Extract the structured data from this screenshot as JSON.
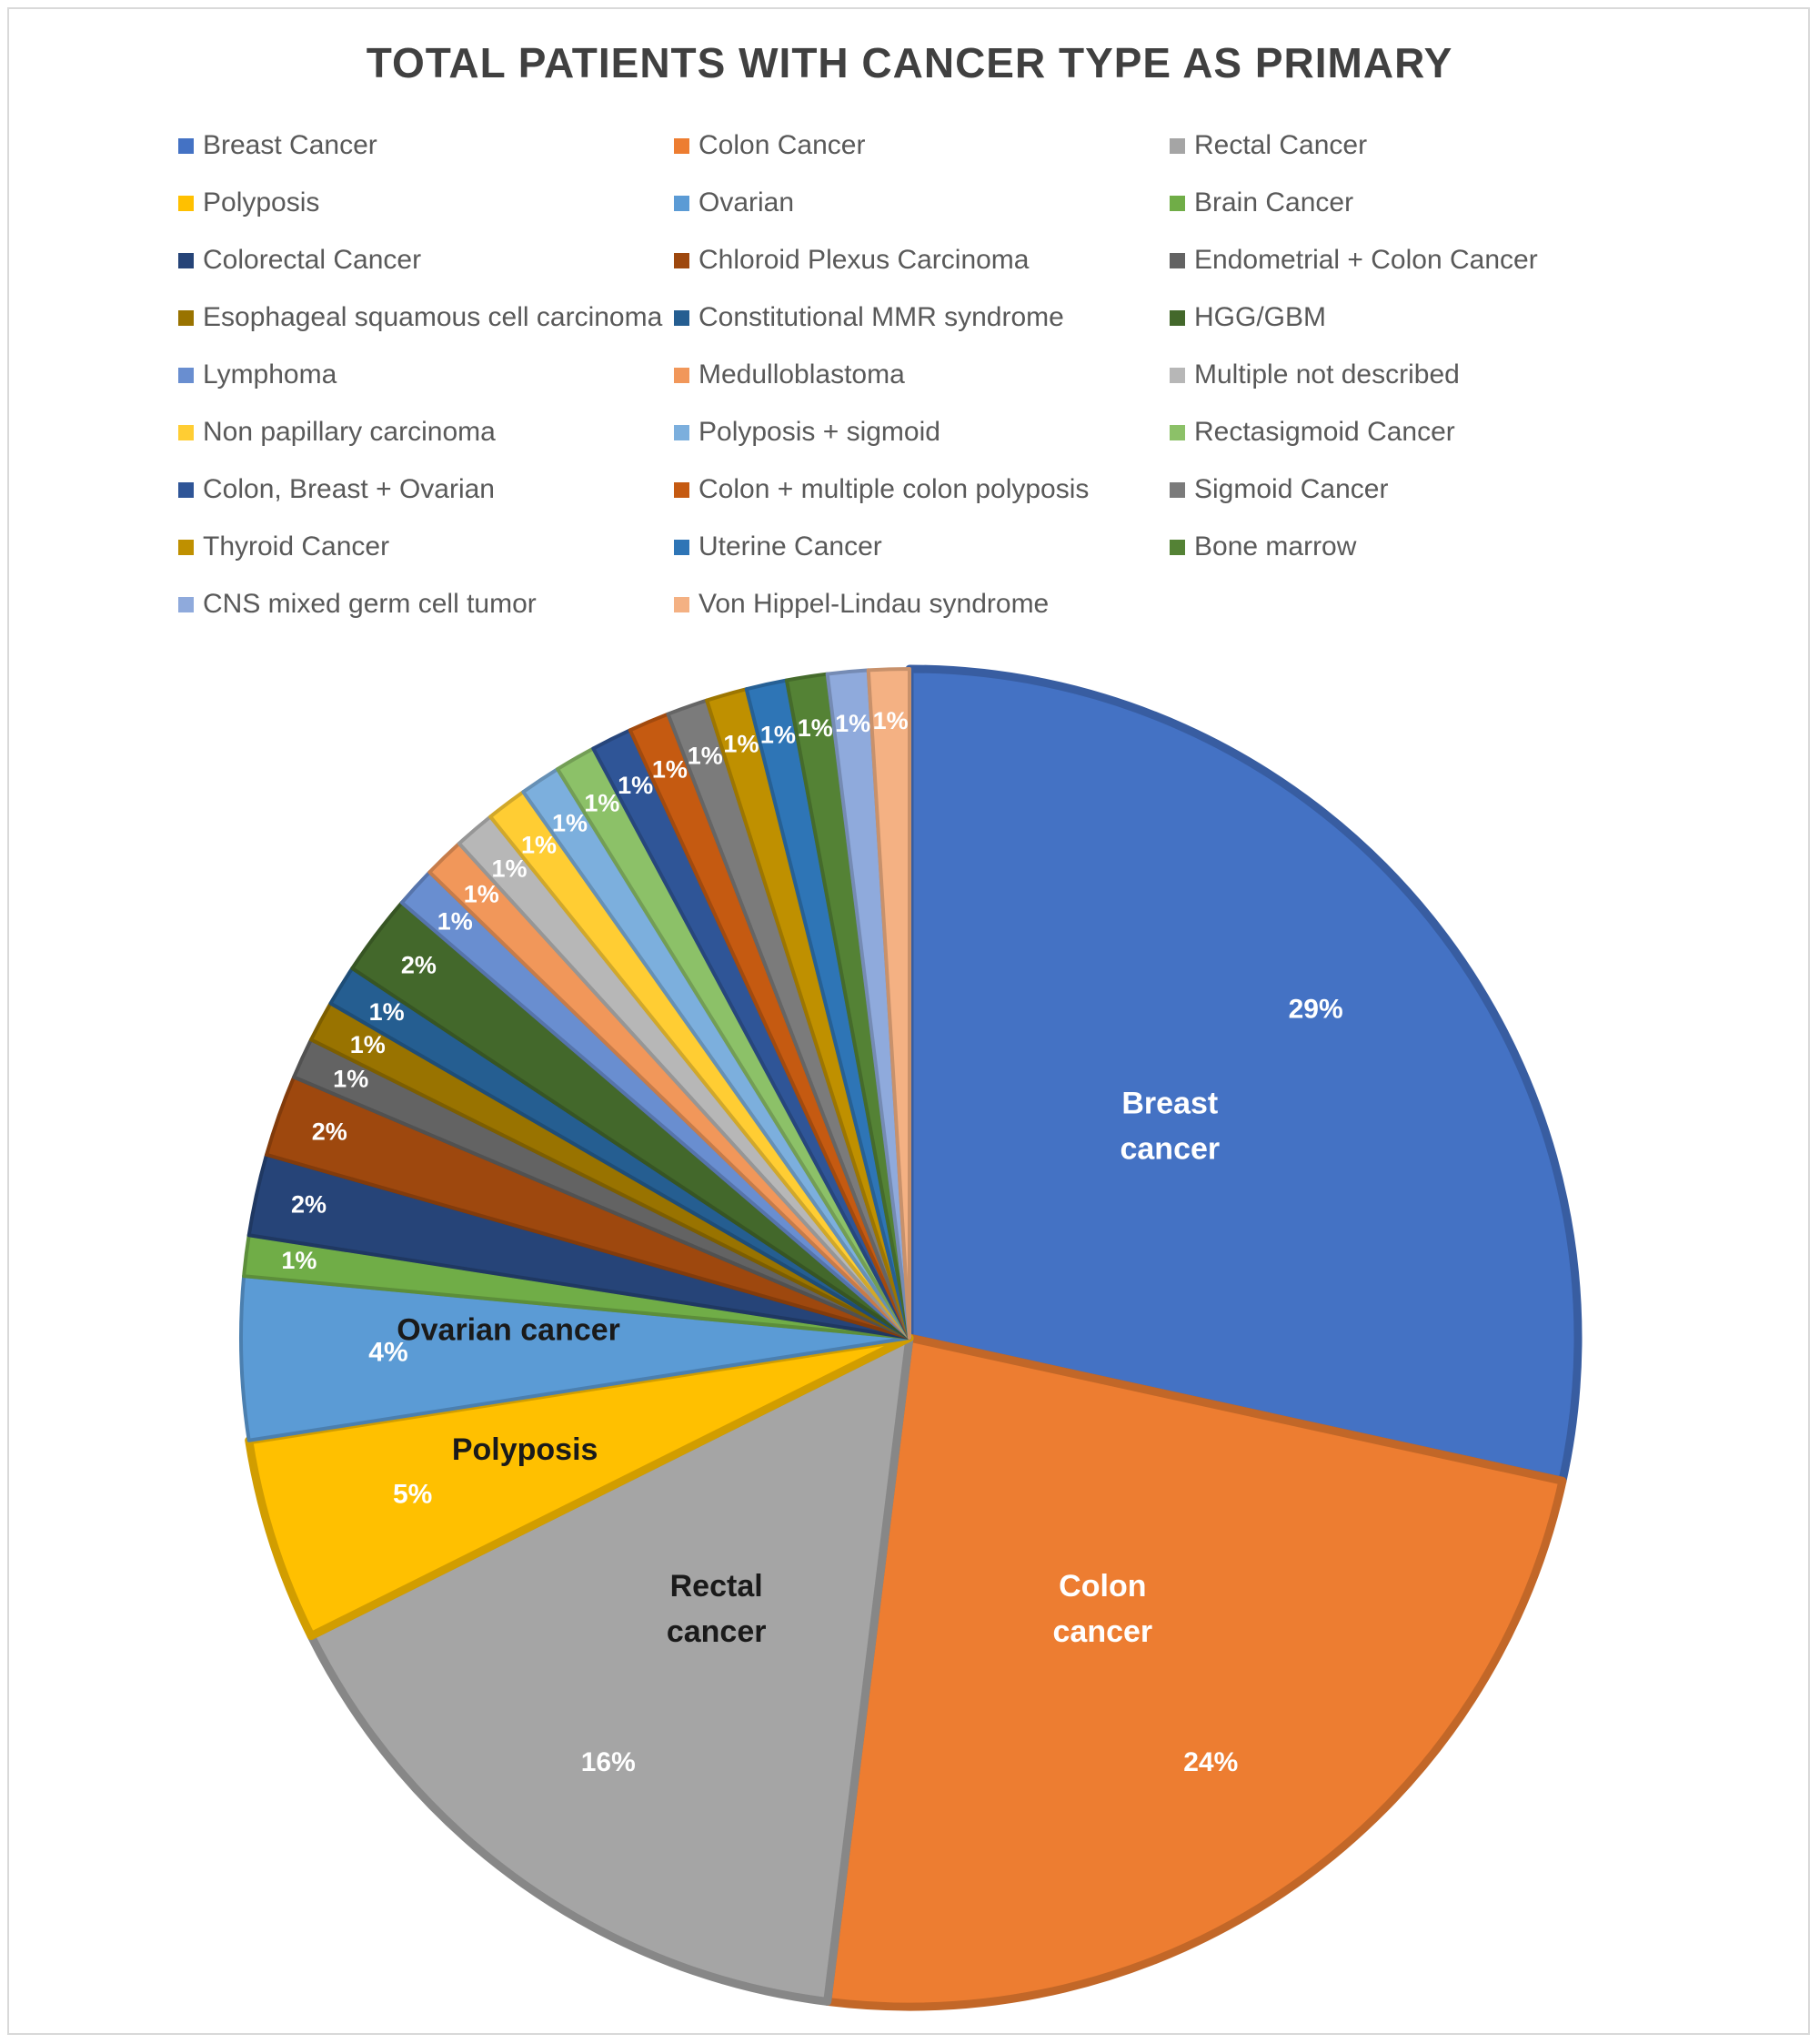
{
  "chart_data": {
    "type": "pie",
    "title": "TOTAL PATIENTS WITH CANCER TYPE AS PRIMARY",
    "slices": [
      {
        "legend": "Breast Cancer",
        "value": 29,
        "label": "29%",
        "name_label": "Breast cancer",
        "color": "#4472C4"
      },
      {
        "legend": "Colon Cancer",
        "value": 24,
        "label": "24%",
        "name_label": "Colon cancer",
        "color": "#ED7D31"
      },
      {
        "legend": "Rectal Cancer",
        "value": 16,
        "label": "16%",
        "name_label": "Rectal cancer",
        "color": "#A5A5A5"
      },
      {
        "legend": "Polyposis",
        "value": 5,
        "label": "5%",
        "name_label": "Polyposis",
        "color": "#FFC000"
      },
      {
        "legend": "Ovarian",
        "value": 4,
        "label": "4%",
        "name_label": "Ovarian cancer",
        "color": "#5B9BD5"
      },
      {
        "legend": "Brain Cancer",
        "value": 1,
        "label": "1%",
        "color": "#70AD47"
      },
      {
        "legend": "Colorectal Cancer",
        "value": 2,
        "label": "2%",
        "color": "#264478"
      },
      {
        "legend": "Chloroid Plexus Carcinoma",
        "value": 2,
        "label": "2%",
        "color": "#9E480E"
      },
      {
        "legend": "Endometrial + Colon Cancer",
        "value": 1,
        "label": "1%",
        "color": "#636363"
      },
      {
        "legend": "Esophageal squamous cell carcinoma",
        "value": 1,
        "label": "1%",
        "color": "#997300"
      },
      {
        "legend": "Constitutional MMR syndrome",
        "value": 1,
        "label": "1%",
        "color": "#255E91"
      },
      {
        "legend": "HGG/GBM",
        "value": 2,
        "label": "2%",
        "color": "#43682B"
      },
      {
        "legend": "Lymphoma",
        "value": 1,
        "label": "1%",
        "color": "#698ED0"
      },
      {
        "legend": "Medulloblastoma",
        "value": 1,
        "label": "1%",
        "color": "#F1975A"
      },
      {
        "legend": "Multiple not described",
        "value": 1,
        "label": "1%",
        "color": "#B7B7B7"
      },
      {
        "legend": "Non papillary carcinoma",
        "value": 1,
        "label": "1%",
        "color": "#FFCD33"
      },
      {
        "legend": "Polyposis + sigmoid",
        "value": 1,
        "label": "1%",
        "color": "#7CAFDD"
      },
      {
        "legend": "Rectasigmoid Cancer",
        "value": 1,
        "label": "1%",
        "color": "#8CC168"
      },
      {
        "legend": "Colon, Breast + Ovarian",
        "value": 1,
        "label": "1%",
        "color": "#2F5597"
      },
      {
        "legend": "Colon + multiple colon polyposis",
        "value": 1,
        "label": "1%",
        "color": "#C55A11"
      },
      {
        "legend": "Sigmoid Cancer",
        "value": 1,
        "label": "1%",
        "color": "#7B7B7B"
      },
      {
        "legend": "Thyroid Cancer",
        "value": 1,
        "label": "1%",
        "color": "#BF9000"
      },
      {
        "legend": "Uterine Cancer",
        "value": 1,
        "label": "1%",
        "color": "#2E75B6"
      },
      {
        "legend": "Bone marrow",
        "value": 1,
        "label": "1%",
        "color": "#548235"
      },
      {
        "legend": "CNS mixed germ cell tumor",
        "value": 1,
        "label": "1%",
        "color": "#8FAADC"
      },
      {
        "legend": "Von Hippel-Lindau syndrome",
        "value": 1,
        "label": "1%",
        "color": "#F4B183"
      }
    ],
    "legend_position": "top",
    "legend_columns": 3
  }
}
